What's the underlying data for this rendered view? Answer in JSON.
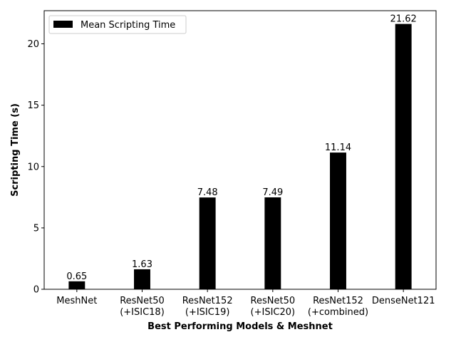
{
  "chart_data": {
    "type": "bar",
    "title": "",
    "xlabel": "Best Performing Models & Meshnet",
    "ylabel": "Scripting Time (s)",
    "categories": [
      [
        "MeshNet"
      ],
      [
        "ResNet50",
        "(+ISIC18)"
      ],
      [
        "ResNet152",
        "(+ISIC19)"
      ],
      [
        "ResNet50",
        "(+ISIC20)"
      ],
      [
        "ResNet152",
        "(+combined)"
      ],
      [
        "DenseNet121"
      ]
    ],
    "series": [
      {
        "name": "Mean Scripting Time",
        "values": [
          0.65,
          1.63,
          7.48,
          7.49,
          11.14,
          21.62
        ],
        "labels": [
          "0.65",
          "1.63",
          "7.48",
          "7.49",
          "11.14",
          "21.62"
        ],
        "color": "#000000"
      }
    ],
    "ylim": [
      0,
      22.7
    ],
    "yticks": [
      0,
      5,
      10,
      15,
      20
    ],
    "ytick_labels": [
      "0",
      "5",
      "10",
      "15",
      "20"
    ],
    "grid": false,
    "legend_position": "top-left"
  }
}
